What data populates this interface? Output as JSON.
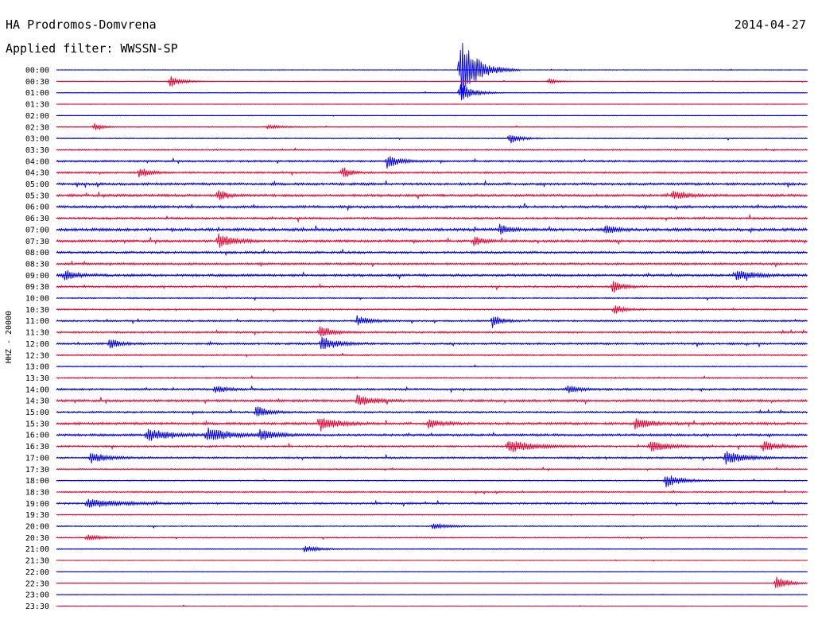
{
  "header": {
    "station": "HA Prodromos-Domvrena",
    "filter": "Applied filter: WWSSN-SP",
    "date": "2014-04-27"
  },
  "chart_data": {
    "type": "line",
    "ylabel": "HHZ - 20000",
    "row_labels": [
      "00:00",
      "00:30",
      "01:00",
      "01:30",
      "02:00",
      "02:30",
      "03:00",
      "03:30",
      "04:00",
      "04:30",
      "05:00",
      "05:30",
      "06:00",
      "06:30",
      "07:00",
      "07:30",
      "08:00",
      "08:30",
      "09:00",
      "09:30",
      "10:00",
      "10:30",
      "11:00",
      "11:30",
      "12:00",
      "12:30",
      "13:00",
      "13:30",
      "14:00",
      "14:30",
      "15:00",
      "15:30",
      "16:00",
      "16:30",
      "17:00",
      "17:30",
      "18:00",
      "18:30",
      "19:00",
      "19:30",
      "20:00",
      "20:30",
      "21:00",
      "21:30",
      "22:00",
      "22:30",
      "23:00",
      "23:30"
    ],
    "colors": {
      "odd": "#0000ee",
      "even": "#ee0033"
    },
    "row_minutes": 30,
    "noise": [
      0.3,
      0.3,
      0.35,
      0.3,
      0.3,
      0.35,
      0.5,
      0.6,
      0.9,
      0.9,
      1.2,
      1.2,
      1.2,
      1.0,
      1.4,
      1.1,
      1.1,
      1.0,
      1.2,
      0.9,
      0.6,
      0.7,
      0.8,
      0.9,
      1.0,
      0.7,
      0.5,
      0.6,
      1.0,
      1.1,
      0.9,
      1.2,
      1.1,
      0.9,
      0.9,
      0.6,
      0.5,
      0.7,
      0.9,
      0.4,
      0.5,
      0.5,
      0.4,
      0.3,
      0.3,
      0.3,
      0.3,
      0.3
    ],
    "events": [
      {
        "row": 0,
        "t": 0.537,
        "amp": 48,
        "dur": 0.02
      },
      {
        "row": 1,
        "t": 0.15,
        "amp": 8,
        "dur": 0.015
      },
      {
        "row": 1,
        "t": 0.655,
        "amp": 4,
        "dur": 0.01
      },
      {
        "row": 2,
        "t": 0.537,
        "amp": 14,
        "dur": 0.015
      },
      {
        "row": 5,
        "t": 0.05,
        "amp": 5,
        "dur": 0.01
      },
      {
        "row": 5,
        "t": 0.28,
        "amp": 3,
        "dur": 0.02
      },
      {
        "row": 6,
        "t": 0.603,
        "amp": 8,
        "dur": 0.012
      },
      {
        "row": 8,
        "t": 0.44,
        "amp": 9,
        "dur": 0.015
      },
      {
        "row": 9,
        "t": 0.11,
        "amp": 7,
        "dur": 0.012
      },
      {
        "row": 9,
        "t": 0.38,
        "amp": 9,
        "dur": 0.01
      },
      {
        "row": 11,
        "t": 0.215,
        "amp": 8,
        "dur": 0.01
      },
      {
        "row": 11,
        "t": 0.82,
        "amp": 6,
        "dur": 0.015
      },
      {
        "row": 14,
        "t": 0.59,
        "amp": 7,
        "dur": 0.012
      },
      {
        "row": 14,
        "t": 0.73,
        "amp": 5,
        "dur": 0.015
      },
      {
        "row": 15,
        "t": 0.215,
        "amp": 10,
        "dur": 0.018
      },
      {
        "row": 15,
        "t": 0.555,
        "amp": 6,
        "dur": 0.012
      },
      {
        "row": 18,
        "t": 0.01,
        "amp": 8,
        "dur": 0.015
      },
      {
        "row": 18,
        "t": 0.905,
        "amp": 7,
        "dur": 0.02
      },
      {
        "row": 19,
        "t": 0.74,
        "amp": 9,
        "dur": 0.012
      },
      {
        "row": 21,
        "t": 0.742,
        "amp": 7,
        "dur": 0.012
      },
      {
        "row": 22,
        "t": 0.4,
        "amp": 7,
        "dur": 0.015
      },
      {
        "row": 22,
        "t": 0.58,
        "amp": 10,
        "dur": 0.01
      },
      {
        "row": 23,
        "t": 0.35,
        "amp": 8,
        "dur": 0.015
      },
      {
        "row": 24,
        "t": 0.352,
        "amp": 11,
        "dur": 0.018
      },
      {
        "row": 24,
        "t": 0.07,
        "amp": 7,
        "dur": 0.012
      },
      {
        "row": 28,
        "t": 0.21,
        "amp": 5,
        "dur": 0.015
      },
      {
        "row": 28,
        "t": 0.68,
        "amp": 5,
        "dur": 0.015
      },
      {
        "row": 29,
        "t": 0.4,
        "amp": 7,
        "dur": 0.02
      },
      {
        "row": 30,
        "t": 0.265,
        "amp": 8,
        "dur": 0.015
      },
      {
        "row": 31,
        "t": 0.35,
        "amp": 10,
        "dur": 0.02
      },
      {
        "row": 31,
        "t": 0.495,
        "amp": 6,
        "dur": 0.015
      },
      {
        "row": 31,
        "t": 0.77,
        "amp": 7,
        "dur": 0.02
      },
      {
        "row": 32,
        "t": 0.12,
        "amp": 8,
        "dur": 0.03
      },
      {
        "row": 32,
        "t": 0.2,
        "amp": 9,
        "dur": 0.03
      },
      {
        "row": 32,
        "t": 0.27,
        "amp": 7,
        "dur": 0.02
      },
      {
        "row": 33,
        "t": 0.6,
        "amp": 9,
        "dur": 0.03
      },
      {
        "row": 33,
        "t": 0.79,
        "amp": 8,
        "dur": 0.02
      },
      {
        "row": 33,
        "t": 0.94,
        "amp": 7,
        "dur": 0.02
      },
      {
        "row": 34,
        "t": 0.045,
        "amp": 7,
        "dur": 0.02
      },
      {
        "row": 34,
        "t": 0.89,
        "amp": 9,
        "dur": 0.025
      },
      {
        "row": 36,
        "t": 0.81,
        "amp": 9,
        "dur": 0.02
      },
      {
        "row": 38,
        "t": 0.04,
        "amp": 6,
        "dur": 0.04
      },
      {
        "row": 40,
        "t": 0.5,
        "amp": 4,
        "dur": 0.02
      },
      {
        "row": 41,
        "t": 0.04,
        "amp": 4,
        "dur": 0.02
      },
      {
        "row": 42,
        "t": 0.33,
        "amp": 4,
        "dur": 0.02
      },
      {
        "row": 45,
        "t": 0.957,
        "amp": 10,
        "dur": 0.015
      }
    ]
  }
}
